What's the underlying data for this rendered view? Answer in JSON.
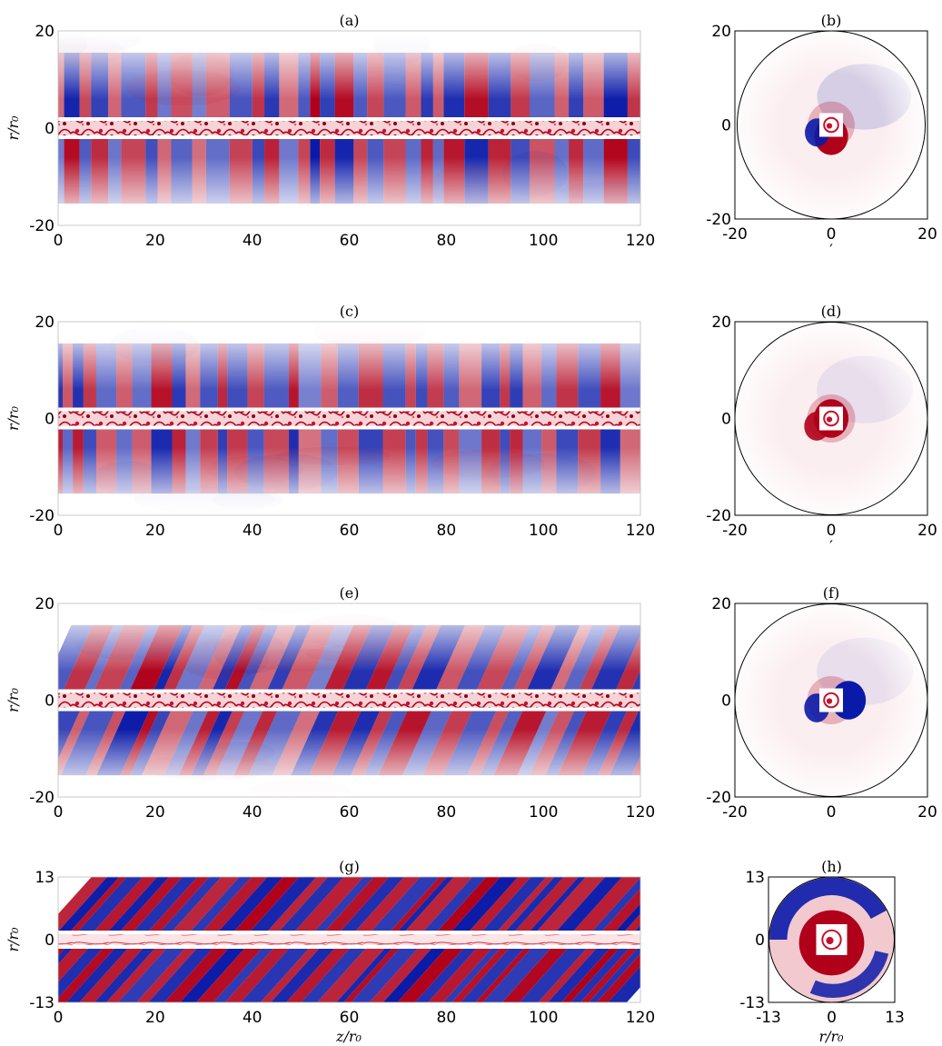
{
  "figure": {
    "colors": {
      "positive": "#b0001a",
      "negative": "#0a1aa8",
      "neutral": "#ffffff",
      "core": "#c8102e",
      "frame": "#555555"
    },
    "y_axis_label": "r/r₀",
    "x_axis_label_bottom_left": "z/r₀",
    "x_axis_label_bottom_right": "r/r₀",
    "rows": [
      {
        "long": {
          "label": "(a)",
          "yticks": [
            "20",
            "0",
            "-20"
          ],
          "xticks": [
            "0",
            "20",
            "40",
            "60",
            "80",
            "100",
            "120"
          ]
        },
        "cross": {
          "label": "(b)",
          "yticks": [
            "20",
            "0",
            "-20"
          ],
          "xticks": [
            "-20",
            "0",
            "20"
          ],
          "xlabel": "′"
        }
      },
      {
        "long": {
          "label": "(c)",
          "yticks": [
            "20",
            "0",
            "-20"
          ],
          "xticks": [
            "0",
            "20",
            "40",
            "60",
            "80",
            "100",
            "120"
          ]
        },
        "cross": {
          "label": "(d)",
          "yticks": [
            "20",
            "0",
            "-20"
          ],
          "xticks": [
            "-20",
            "0",
            "20"
          ],
          "xlabel": "′"
        }
      },
      {
        "long": {
          "label": "(e)",
          "yticks": [
            "20",
            "0",
            "-20"
          ],
          "xticks": [
            "0",
            "20",
            "40",
            "60",
            "80",
            "100",
            "120"
          ]
        },
        "cross": {
          "label": "(f)",
          "yticks": [
            "20",
            "0",
            "-20"
          ],
          "xticks": [
            "-20",
            "0",
            "20"
          ],
          "xlabel": ""
        }
      },
      {
        "long": {
          "label": "(g)",
          "yticks": [
            "13",
            "0",
            "-13"
          ],
          "xticks": [
            "0",
            "20",
            "40",
            "60",
            "80",
            "100",
            "120"
          ]
        },
        "cross": {
          "label": "(h)",
          "yticks": [
            "13",
            "0",
            "-13"
          ],
          "xticks": [
            "-13",
            "0",
            "13"
          ],
          "xlabel": ""
        }
      }
    ]
  }
}
